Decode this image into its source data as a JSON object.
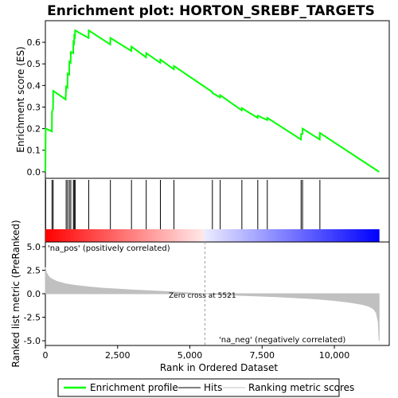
{
  "chart_data": {
    "type": "line",
    "title": "Enrichment plot: HORTON_SREBF_TARGETS",
    "xlabel": "Rank in Ordered Dataset",
    "ylabel_top": "Enrichment score (ES)",
    "ylabel_bottom": "Ranked list metric (PreRanked)",
    "x_ticks": [
      0,
      2500,
      5000,
      7500,
      10000
    ],
    "x_tick_labels": [
      "0",
      "2,500",
      "5,000",
      "7,500",
      "10,000"
    ],
    "xlim": [
      0,
      11900
    ],
    "es_ylim": [
      -0.03,
      0.7
    ],
    "es_ticks": [
      0.0,
      0.1,
      0.2,
      0.3,
      0.4,
      0.5,
      0.6
    ],
    "es_tick_labels": [
      "0.0",
      "0.1",
      "0.2",
      "0.3",
      "0.4",
      "0.5",
      "0.6"
    ],
    "metric_ylim": [
      -5.5,
      5.5
    ],
    "metric_ticks": [
      5.0,
      2.5,
      0.0,
      -2.5,
      -5.0
    ],
    "metric_tick_labels": [
      "5.0",
      "2.5",
      "0.0",
      "-2.5",
      "-5.0"
    ],
    "hits": [
      10,
      230,
      270,
      720,
      770,
      830,
      880,
      970,
      1000,
      1030,
      1500,
      2250,
      2980,
      3490,
      3980,
      4450,
      5780,
      6050,
      6800,
      7350,
      7680,
      8850,
      8900,
      9500
    ],
    "es_series": {
      "name": "Enrichment profile",
      "x": [
        0,
        10,
        20,
        225,
        230,
        265,
        270,
        275,
        700,
        720,
        765,
        770,
        825,
        830,
        875,
        880,
        965,
        970,
        995,
        1000,
        1025,
        1030,
        1495,
        1500,
        2245,
        2250,
        2975,
        2980,
        3485,
        3490,
        3975,
        3980,
        4445,
        4450,
        5775,
        5780,
        6045,
        6050,
        6795,
        6800,
        7345,
        7350,
        7675,
        7680,
        8845,
        8850,
        8895,
        8900,
        9495,
        9500,
        11550
      ],
      "y": [
        0.0,
        0.2,
        0.2,
        0.187,
        0.28,
        0.29,
        0.37,
        0.375,
        0.335,
        0.395,
        0.39,
        0.455,
        0.45,
        0.51,
        0.505,
        0.555,
        0.55,
        0.6,
        0.595,
        0.63,
        0.625,
        0.655,
        0.62,
        0.655,
        0.59,
        0.62,
        0.56,
        0.58,
        0.53,
        0.55,
        0.505,
        0.52,
        0.475,
        0.49,
        0.37,
        0.365,
        0.345,
        0.355,
        0.285,
        0.295,
        0.25,
        0.26,
        0.24,
        0.25,
        0.15,
        0.175,
        0.175,
        0.2,
        0.15,
        0.18,
        0.0
      ]
    },
    "metric_series": {
      "name": "Ranking metric scores",
      "x": [
        0,
        30,
        100,
        200,
        400,
        700,
        1000,
        1500,
        2000,
        3000,
        4000,
        5000,
        5521,
        6000,
        7000,
        8000,
        9000,
        9500,
        10000,
        10500,
        11000,
        11200,
        11350,
        11450,
        11520,
        11550
      ],
      "y": [
        2.8,
        2.3,
        1.9,
        1.6,
        1.3,
        1.05,
        0.9,
        0.72,
        0.58,
        0.4,
        0.25,
        0.08,
        0.0,
        -0.08,
        -0.2,
        -0.32,
        -0.48,
        -0.58,
        -0.72,
        -0.9,
        -1.15,
        -1.35,
        -1.6,
        -2.0,
        -3.0,
        -5.0
      ]
    },
    "legend": [
      "Enrichment profile",
      "Hits",
      "Ranking metric scores"
    ],
    "legend_placement": "bottom",
    "annotations": {
      "pos": "'na_pos' (positively correlated)",
      "neg": "'na_neg' (negatively correlated)",
      "zero": "Zero cross at 5521",
      "zero_cross": 5521
    },
    "colors": {
      "es_line": "#00ff00",
      "hit": "#000000",
      "metric_fill": "#c0c0c0",
      "pos_text": "#ff0000",
      "neg_text": "#0000ff",
      "bar_red": "#ff0000",
      "bar_blue": "#0000ff"
    },
    "grid": false
  }
}
